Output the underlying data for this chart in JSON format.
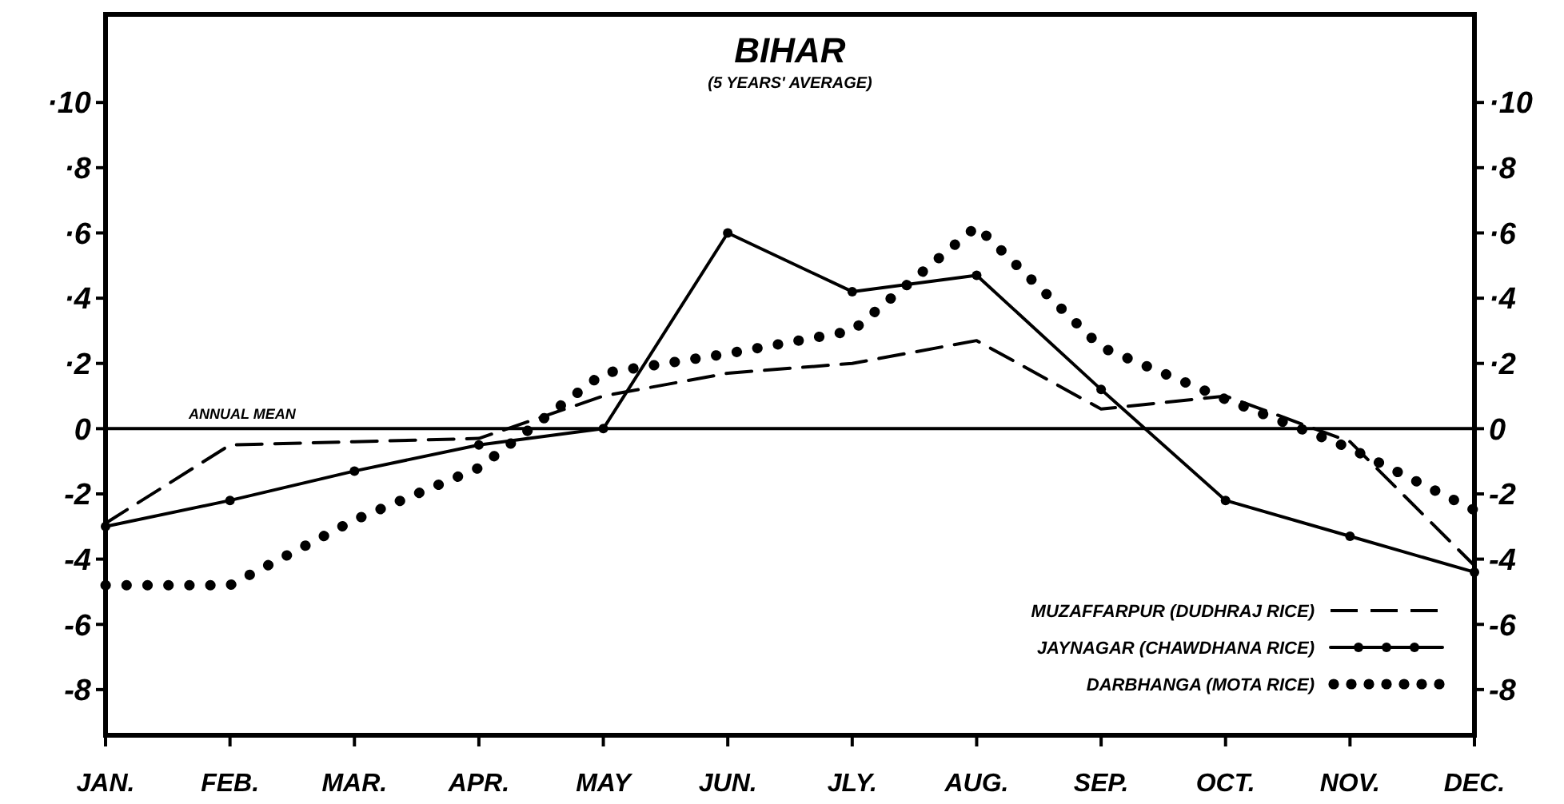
{
  "chart_data": {
    "type": "line",
    "title": "BIHAR",
    "subtitle": "(5 YEARS' AVERAGE)",
    "categories": [
      "JAN.",
      "FEB.",
      "MAR.",
      "APR.",
      "MAY",
      "JUN.",
      "JLY.",
      "AUG.",
      "SEP.",
      "OCT.",
      "NOV.",
      "DEC."
    ],
    "ylim": [
      -9.4,
      12.7
    ],
    "yticks": [
      {
        "value": 10,
        "label": "·10"
      },
      {
        "value": 8,
        "label": "·8"
      },
      {
        "value": 6,
        "label": "·6"
      },
      {
        "value": 4,
        "label": "·4"
      },
      {
        "value": 2,
        "label": "·2"
      },
      0,
      -2,
      -4,
      -6,
      -8
    ],
    "y2lim": [
      -9.4,
      12.7
    ],
    "y2ticks": [
      {
        "value": 10,
        "label": "·10"
      },
      {
        "value": 8,
        "label": "·8"
      },
      {
        "value": 6,
        "label": "·6"
      },
      {
        "value": 4,
        "label": "·4"
      },
      {
        "value": 2,
        "label": "·2"
      },
      0,
      -2,
      -4,
      -6,
      -8
    ],
    "ref_lines": [
      {
        "axis": "y",
        "value": 0,
        "label": "ANNUAL MEAN"
      }
    ],
    "grid": false,
    "legend": "bottom right",
    "series": [
      {
        "name": "MUZAFFARPUR (DUDHRAJ RICE)",
        "color": "#000000",
        "line_style": "dashed",
        "marker": "none",
        "values": [
          -2.9,
          -0.5,
          -0.4,
          -0.3,
          1.0,
          1.7,
          2.0,
          2.7,
          0.6,
          1.0,
          -0.4,
          -4.2
        ]
      },
      {
        "name": "JAYNAGAR (CHAWDHANA RICE)",
        "color": "#000000",
        "line_style": "solid",
        "marker": "circle",
        "values": [
          -3.0,
          -2.2,
          -1.3,
          -0.5,
          0,
          6.0,
          4.2,
          4.7,
          1.2,
          -2.2,
          -3.3,
          -4.4
        ]
      },
      {
        "name": "DARBHANGA (MOTA RICE)",
        "color": "#000000",
        "line_style": "dotted",
        "marker": "none",
        "values": [
          -4.8,
          -4.8,
          -2.8,
          -1.2,
          1.7,
          2.3,
          3.0,
          6.2,
          2.5,
          0.9,
          -0.6,
          -2.5
        ]
      }
    ]
  }
}
